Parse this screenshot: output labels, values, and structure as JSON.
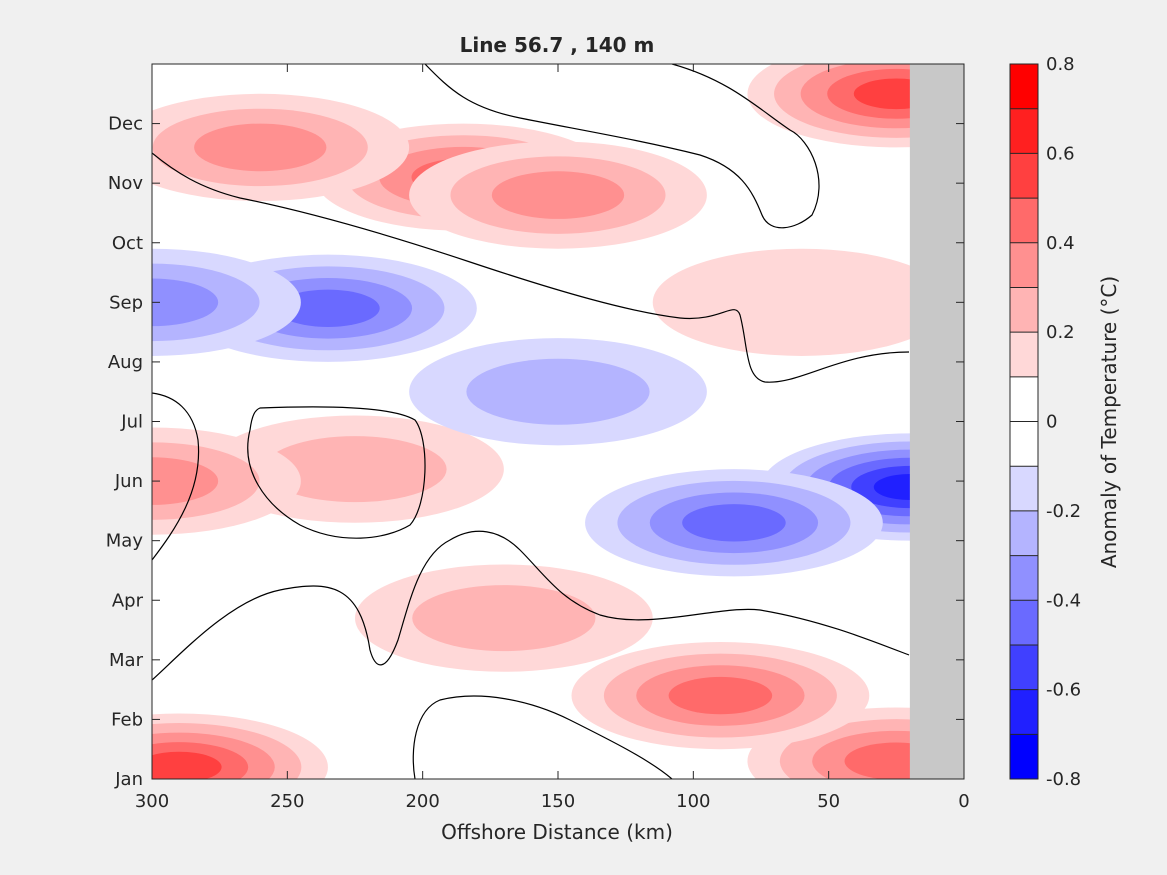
{
  "chart_data": {
    "type": "heatmap",
    "title": "Line 56.7 , 140 m",
    "xlabel": "Offshore Distance (km)",
    "ylabel": "",
    "x_reversed": true,
    "xlim": [
      300,
      0
    ],
    "x_ticks": [
      "300",
      "250",
      "200",
      "150",
      "100",
      "50",
      "0"
    ],
    "y_tick_values": [
      1,
      2,
      3,
      4,
      5,
      6,
      7,
      8,
      9,
      10,
      11,
      12
    ],
    "y_ticks": [
      "Jan",
      "Feb",
      "Mar",
      "Apr",
      "May",
      "Jun",
      "Jul",
      "Aug",
      "Sep",
      "Oct",
      "Nov",
      "Dec"
    ],
    "ylim": [
      1,
      13
    ],
    "colorbar": {
      "label": "Anomaly of Temperature (°C)",
      "range": [
        -0.8,
        0.8
      ],
      "levels": [
        -0.8,
        -0.7,
        -0.6,
        -0.5,
        -0.4,
        -0.3,
        -0.2,
        -0.1,
        0,
        0.1,
        0.2,
        0.3,
        0.4,
        0.5,
        0.6,
        0.7,
        0.8
      ],
      "tick_labels": [
        "0.8",
        "0.6",
        "0.4",
        "0.2",
        "0",
        "-0.2",
        "-0.4",
        "-0.6",
        "-0.8"
      ],
      "colors": [
        "#0000ff",
        "#2020ff",
        "#4040ff",
        "#6a6aff",
        "#9090ff",
        "#b4b4ff",
        "#d8d8ff",
        "#ffffff",
        "#ffffff",
        "#ffd8d8",
        "#ffb4b4",
        "#ff9090",
        "#ff6a6a",
        "#ff4040",
        "#ff2020",
        "#ff0000"
      ]
    },
    "no_data_region_km": [
      20,
      0
    ],
    "no_data_color": "#c8c8c8",
    "zero_contour_color": "#000000",
    "anomaly_features": [
      {
        "x_km": 25,
        "month": 1.3,
        "value": 0.45
      },
      {
        "x_km": 290,
        "month": 1.2,
        "value": 0.5
      },
      {
        "x_km": 90,
        "month": 2.4,
        "value": 0.45
      },
      {
        "x_km": 170,
        "month": 3.7,
        "value": 0.25
      },
      {
        "x_km": 20,
        "month": 5.9,
        "value": -0.65
      },
      {
        "x_km": 85,
        "month": 5.3,
        "value": -0.45
      },
      {
        "x_km": 225,
        "month": 6.2,
        "value": 0.22
      },
      {
        "x_km": 300,
        "month": 6.0,
        "value": 0.35
      },
      {
        "x_km": 235,
        "month": 8.9,
        "value": -0.45
      },
      {
        "x_km": 300,
        "month": 9.0,
        "value": -0.35
      },
      {
        "x_km": 185,
        "month": 11.1,
        "value": 0.45
      },
      {
        "x_km": 150,
        "month": 10.8,
        "value": 0.35
      },
      {
        "x_km": 260,
        "month": 11.6,
        "value": 0.35
      },
      {
        "x_km": 25,
        "month": 12.5,
        "value": 0.5
      },
      {
        "x_km": 60,
        "month": 9.0,
        "value": 0.15
      },
      {
        "x_km": 150,
        "month": 7.5,
        "value": -0.25
      }
    ]
  }
}
